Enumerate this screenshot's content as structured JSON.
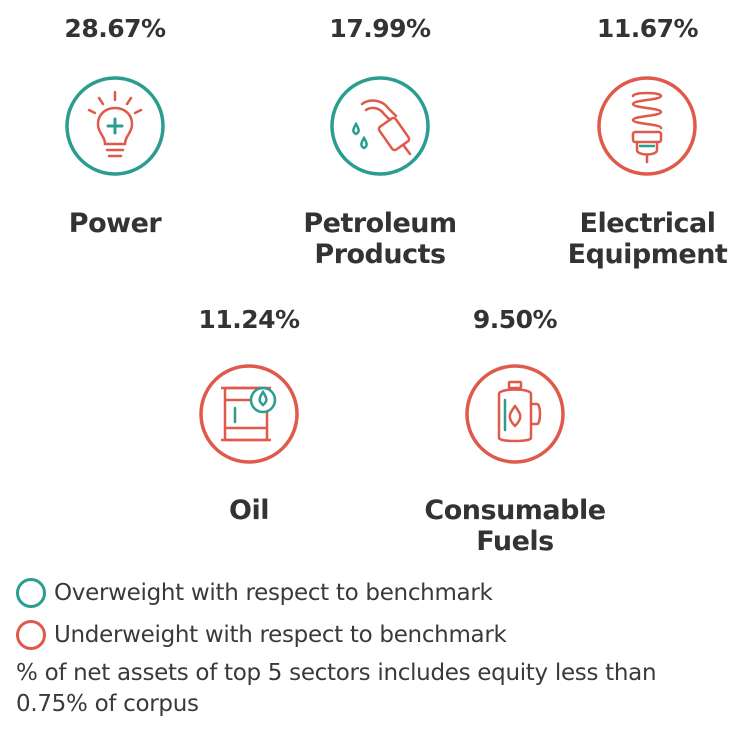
{
  "colors": {
    "overweight": "#2a9d8f",
    "underweight": "#e05a4b"
  },
  "sectors": [
    {
      "pct": "28.67%",
      "name_line1": "Power",
      "name_line2": "",
      "weight": "overweight",
      "icon": "lightbulb-icon"
    },
    {
      "pct": "17.99%",
      "name_line1": "Petroleum",
      "name_line2": "Products",
      "weight": "overweight",
      "icon": "fuel-nozzle-icon"
    },
    {
      "pct": "11.67%",
      "name_line1": "Electrical",
      "name_line2": "Equipment",
      "weight": "underweight",
      "icon": "cfl-bulb-icon"
    },
    {
      "pct": "11.24%",
      "name_line1": "Oil",
      "name_line2": "",
      "weight": "underweight",
      "icon": "oil-barrel-icon"
    },
    {
      "pct": "9.50%",
      "name_line1": "Consumable",
      "name_line2": "Fuels",
      "weight": "underweight",
      "icon": "gas-canister-icon"
    }
  ],
  "legend": {
    "overweight": "Overweight with respect to benchmark",
    "underweight": "Underweight with respect to benchmark"
  },
  "note": "% of net assets of top 5 sectors includes equity less than 0.75% of corpus"
}
